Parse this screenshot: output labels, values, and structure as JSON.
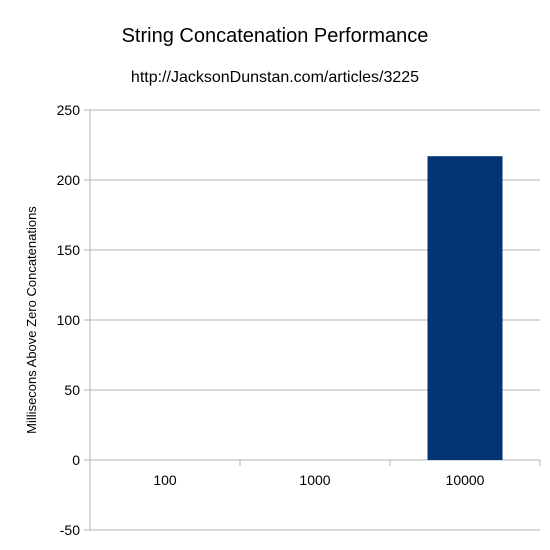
{
  "chart_data": {
    "type": "bar",
    "title": "String Concatenation Performance",
    "subtitle": "http://JacksonDunstan.com/articles/3225",
    "xlabel": "",
    "ylabel": "Millisecons Above Zero Concatenations",
    "categories": [
      "100",
      "1000",
      "10000"
    ],
    "values": [
      0,
      0,
      217
    ],
    "ylim": [
      -50,
      250
    ],
    "yticks": [
      -50,
      0,
      50,
      100,
      150,
      200,
      250
    ],
    "grid": true,
    "legend": "none",
    "bar_color": "#003474"
  }
}
